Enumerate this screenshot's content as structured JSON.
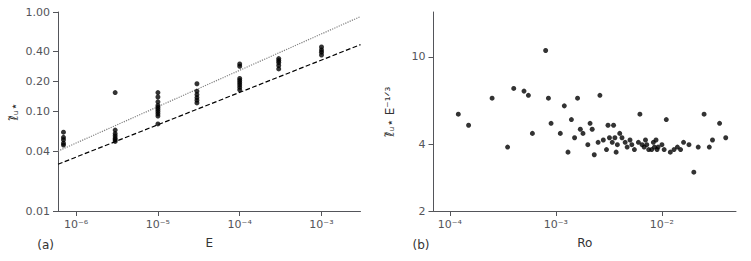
{
  "chart_data": [
    {
      "type": "scatter",
      "xlabel": "E",
      "ylabel": "ℓ̃ᵤ⋆",
      "annotations": [
        "(a)"
      ],
      "log": true,
      "grid": false,
      "xlim": [
        6e-07,
        0.003
      ],
      "ylim": [
        0.01,
        1
      ],
      "xticks": [
        {
          "value": 1e-06,
          "label": "10⁻⁶"
        },
        {
          "value": 1e-05,
          "label": "10⁻⁵"
        },
        {
          "value": 0.0001,
          "label": "10⁻⁴"
        },
        {
          "value": 0.001,
          "label": "10⁻³"
        }
      ],
      "yticks": [
        0.01,
        0.04,
        {
          "value": 0.1,
          "label": "0.10"
        },
        {
          "value": 0.2,
          "label": "0.20"
        },
        {
          "value": 0.4,
          "label": "0.40"
        },
        {
          "value": 1,
          "label": "1.00"
        }
      ],
      "series": [
        {
          "type": "scatter",
          "color": "black",
          "marker": "circle",
          "x": [
            7e-07,
            7e-07,
            7e-07,
            7e-07,
            7e-07,
            3e-06,
            3e-06,
            3e-06,
            3e-06,
            3e-06,
            3e-06,
            3e-06,
            1e-05,
            1e-05,
            1e-05,
            1e-05,
            1e-05,
            1e-05,
            1e-05,
            1e-05,
            1e-05,
            1e-05,
            3e-05,
            3e-05,
            3e-05,
            3e-05,
            3e-05,
            3e-05,
            0.0001,
            0.0001,
            0.0001,
            0.0001,
            0.0001,
            0.0001,
            0.0001,
            0.0001,
            0.0003,
            0.0003,
            0.0003,
            0.0003,
            0.0003,
            0.001,
            0.001,
            0.001,
            0.001
          ],
          "values": [
            0.062,
            0.055,
            0.052,
            0.048,
            0.046,
            0.155,
            0.065,
            0.06,
            0.057,
            0.054,
            0.052,
            0.05,
            0.155,
            0.14,
            0.125,
            0.115,
            0.11,
            0.105,
            0.1,
            0.095,
            0.09,
            0.075,
            0.19,
            0.16,
            0.148,
            0.138,
            0.13,
            0.122,
            0.3,
            0.285,
            0.215,
            0.205,
            0.195,
            0.185,
            0.175,
            0.165,
            0.34,
            0.325,
            0.31,
            0.29,
            0.268,
            0.445,
            0.415,
            0.395,
            0.37
          ]
        },
        {
          "type": "line",
          "color": "black",
          "line_style": "dashed",
          "x": [
            6e-07,
            0.003
          ],
          "values": [
            0.0295,
            0.47
          ]
        },
        {
          "type": "line",
          "color": "gray",
          "line_style": "dotted",
          "x": [
            6e-07,
            0.003
          ],
          "values": [
            0.04,
            0.9
          ]
        }
      ]
    },
    {
      "type": "scatter",
      "xlabel": "Ro",
      "ylabel": "ℓ̃ᵤ⋆ E⁻¹ᐟ³",
      "annotations": [
        "(b)"
      ],
      "log": true,
      "grid": false,
      "xlim": [
        7e-05,
        0.05
      ],
      "ylim": [
        2.0,
        16.0
      ],
      "xticks": [
        {
          "value": 0.0001,
          "label": "10⁻⁴"
        },
        {
          "value": 0.001,
          "label": "10⁻³"
        },
        {
          "value": 0.01,
          "label": "10⁻²"
        }
      ],
      "yticks": [
        2,
        4,
        10
      ],
      "series": [
        {
          "type": "scatter",
          "color": "black",
          "marker": "circle",
          "x": [
            0.00012,
            0.00015,
            0.00025,
            0.00035,
            0.0004,
            0.0005,
            0.00055,
            0.0006,
            0.0008,
            0.00085,
            0.0009,
            0.0011,
            0.0012,
            0.0013,
            0.0014,
            0.0015,
            0.0016,
            0.0017,
            0.0018,
            0.002,
            0.0021,
            0.0022,
            0.0023,
            0.0025,
            0.0026,
            0.0028,
            0.003,
            0.0031,
            0.0032,
            0.0034,
            0.0035,
            0.0036,
            0.0037,
            0.0038,
            0.004,
            0.0042,
            0.0045,
            0.0047,
            0.005,
            0.0052,
            0.0055,
            0.006,
            0.0062,
            0.0065,
            0.0068,
            0.007,
            0.0072,
            0.0075,
            0.008,
            0.0083,
            0.0085,
            0.0088,
            0.009,
            0.0092,
            0.01,
            0.0105,
            0.011,
            0.012,
            0.013,
            0.014,
            0.015,
            0.016,
            0.018,
            0.02,
            0.022,
            0.025,
            0.028,
            0.03,
            0.035,
            0.04
          ],
          "values": [
            5.5,
            4.9,
            6.5,
            3.9,
            7.2,
            7.0,
            6.7,
            4.5,
            10.7,
            6.5,
            5.0,
            4.5,
            6.0,
            3.7,
            5.2,
            4.3,
            6.5,
            4.7,
            4.5,
            4.0,
            5.0,
            4.7,
            3.6,
            4.1,
            6.7,
            4.2,
            3.8,
            4.9,
            4.3,
            4.1,
            4.9,
            4.3,
            3.7,
            4.0,
            4.5,
            4.3,
            4.1,
            3.9,
            4.2,
            4.0,
            3.8,
            4.1,
            5.5,
            4.0,
            3.9,
            4.2,
            4.0,
            3.8,
            3.8,
            4.1,
            3.9,
            4.2,
            3.8,
            3.9,
            4.0,
            3.8,
            5.2,
            3.7,
            3.8,
            3.9,
            3.8,
            4.1,
            4.0,
            3.0,
            3.9,
            5.5,
            3.9,
            4.2,
            5.0,
            4.3
          ]
        }
      ]
    }
  ]
}
